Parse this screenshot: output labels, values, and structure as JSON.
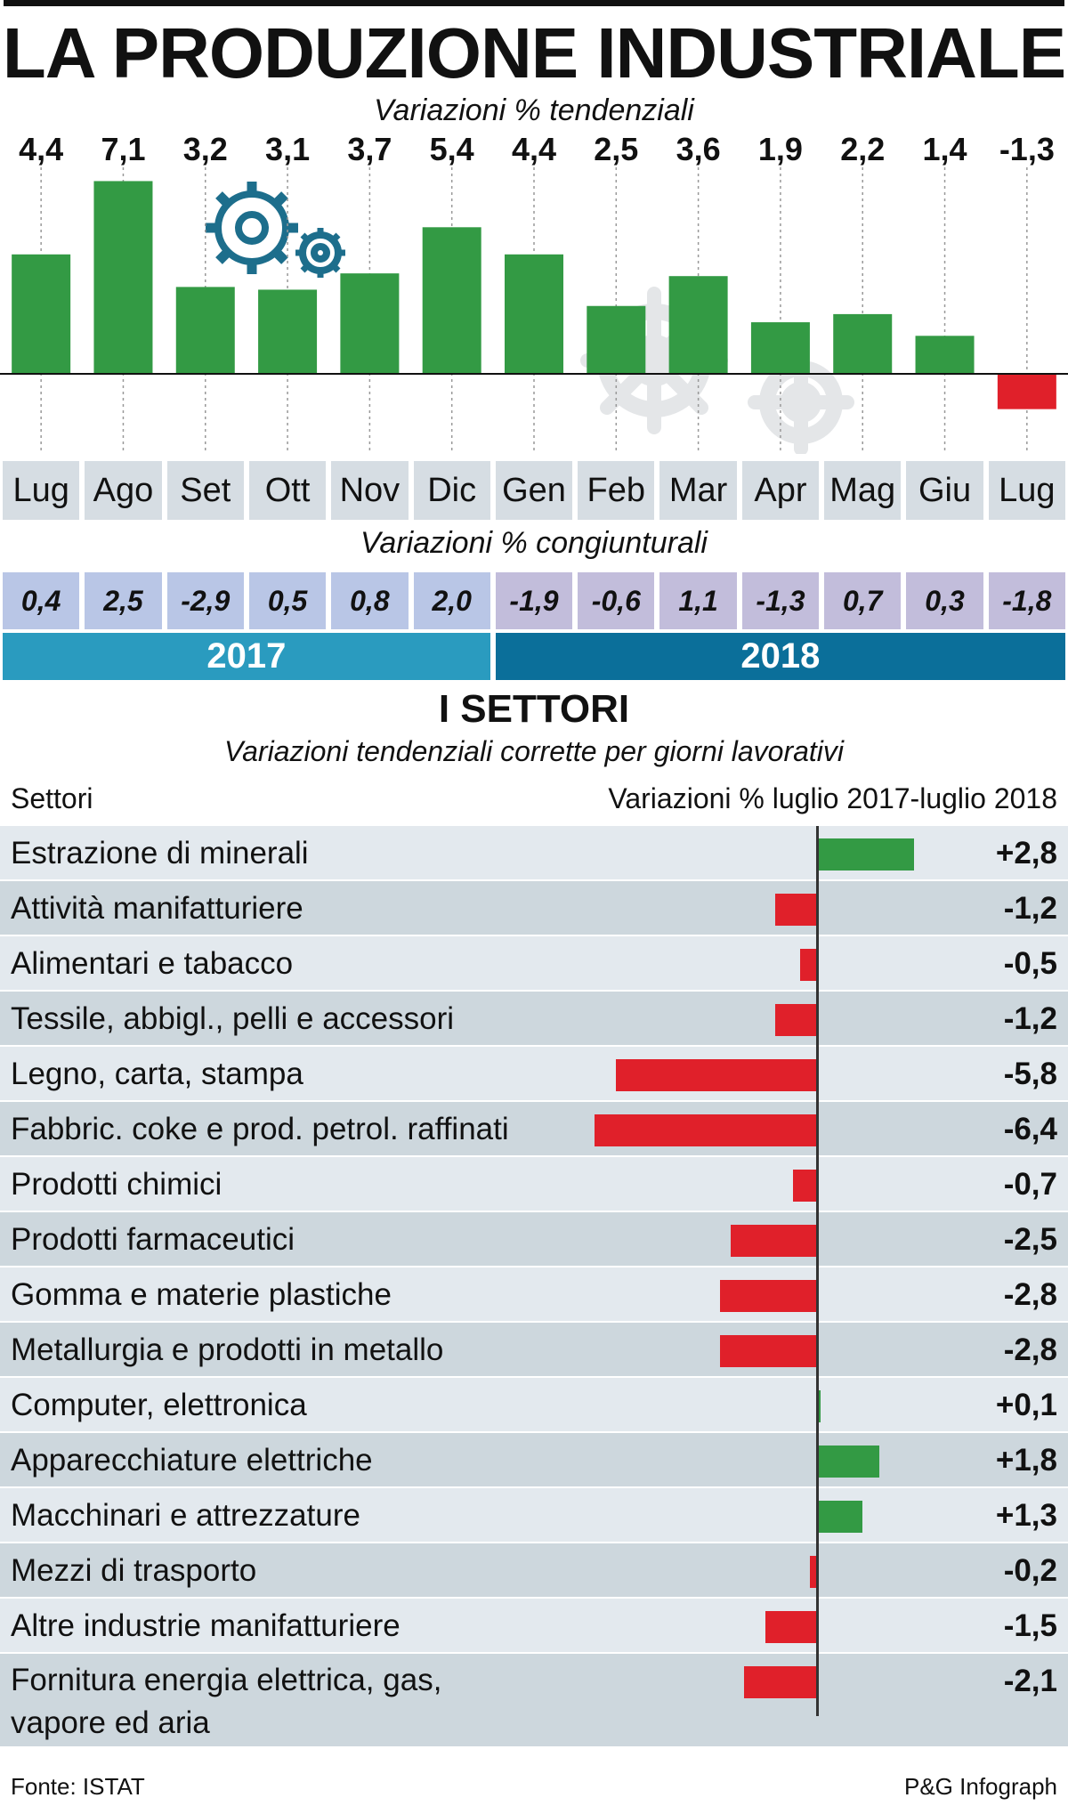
{
  "header": {
    "title": "LA PRODUZIONE INDUSTRIALE",
    "subtitle": "Variazioni % tendenziali"
  },
  "chart_data": [
    {
      "type": "bar",
      "subtitle": "Variazioni % tendenziali",
      "categories": [
        "Lug",
        "Ago",
        "Set",
        "Ott",
        "Nov",
        "Dic",
        "Gen",
        "Feb",
        "Mar",
        "Apr",
        "Mag",
        "Giu",
        "Lug"
      ],
      "values": [
        4.4,
        7.1,
        3.2,
        3.1,
        3.7,
        5.4,
        4.4,
        2.5,
        3.6,
        1.9,
        2.2,
        1.4,
        -1.3
      ],
      "value_labels": [
        "4,4",
        "7,1",
        "3,2",
        "3,1",
        "3,7",
        "5,4",
        "4,4",
        "2,5",
        "3,6",
        "1,9",
        "2,2",
        "1,4",
        "-1,3"
      ],
      "positive_color": "#339a44",
      "negative_color": "#e0202a",
      "congiunturali_title": "Variazioni % congiunturali",
      "congiunturali": [
        0.4,
        2.5,
        -2.9,
        0.5,
        0.8,
        2.0,
        -1.9,
        -0.6,
        1.1,
        -1.3,
        0.7,
        0.3,
        -1.8
      ],
      "congiunturali_labels": [
        "0,4",
        "2,5",
        "-2,9",
        "0,5",
        "0,8",
        "2,0",
        "-1,9",
        "-0,6",
        "1,1",
        "-1,3",
        "0,7",
        "0,3",
        "-1,8"
      ],
      "years": [
        {
          "label": "2017",
          "months": 6,
          "color": "#2a9bbf"
        },
        {
          "label": "2018",
          "months": 7,
          "color": "#0b6f9a"
        }
      ]
    },
    {
      "type": "bar",
      "orientation": "horizontal",
      "title": "I SETTORI",
      "subtitle": "Variazioni tendenziali corrette per giorni lavorativi",
      "column_left": "Settori",
      "column_right": "Variazioni % luglio 2017-luglio 2018",
      "categories": [
        "Estrazione di minerali",
        "Attività manifatturiere",
        "Alimentari e tabacco",
        "Tessile, abbigl., pelli e accessori",
        "Legno, carta, stampa",
        "Fabbric. coke e prod. petrol. raffinati",
        "Prodotti chimici",
        "Prodotti farmaceutici",
        "Gomma e materie plastiche",
        "Metallurgia e prodotti in metallo",
        "Computer, elettronica",
        "Apparecchiature elettriche",
        "Macchinari e attrezzature",
        "Mezzi di trasporto",
        "Altre industrie manifatturiere",
        "Fornitura energia elettrica, gas, vapore ed aria"
      ],
      "values": [
        2.8,
        -1.2,
        -0.5,
        -1.2,
        -5.8,
        -6.4,
        -0.7,
        -2.5,
        -2.8,
        -2.8,
        0.1,
        1.8,
        1.3,
        -0.2,
        -1.5,
        -2.1
      ],
      "value_labels": [
        "+2,8",
        "-1,2",
        "-0,5",
        "-1,2",
        "-5,8",
        "-6,4",
        "-0,7",
        "-2,5",
        "-2,8",
        "-2,8",
        "+0,1",
        "+1,8",
        "+1,3",
        "-0,2",
        "-1,5",
        "-2,1"
      ]
    }
  ],
  "colors": {
    "positive": "#339a44",
    "negative": "#e0202a",
    "row_light": "#e3e9ee",
    "row_dark": "#cdd7dd",
    "cong_2017": "#b9c6e6",
    "cong_2018": "#c2bddb",
    "month_cell": "#d6dde3"
  },
  "icons": {
    "gears": "gears-icon"
  },
  "footer": {
    "source": "Fonte: ISTAT",
    "credit": "P&G Infograph"
  }
}
